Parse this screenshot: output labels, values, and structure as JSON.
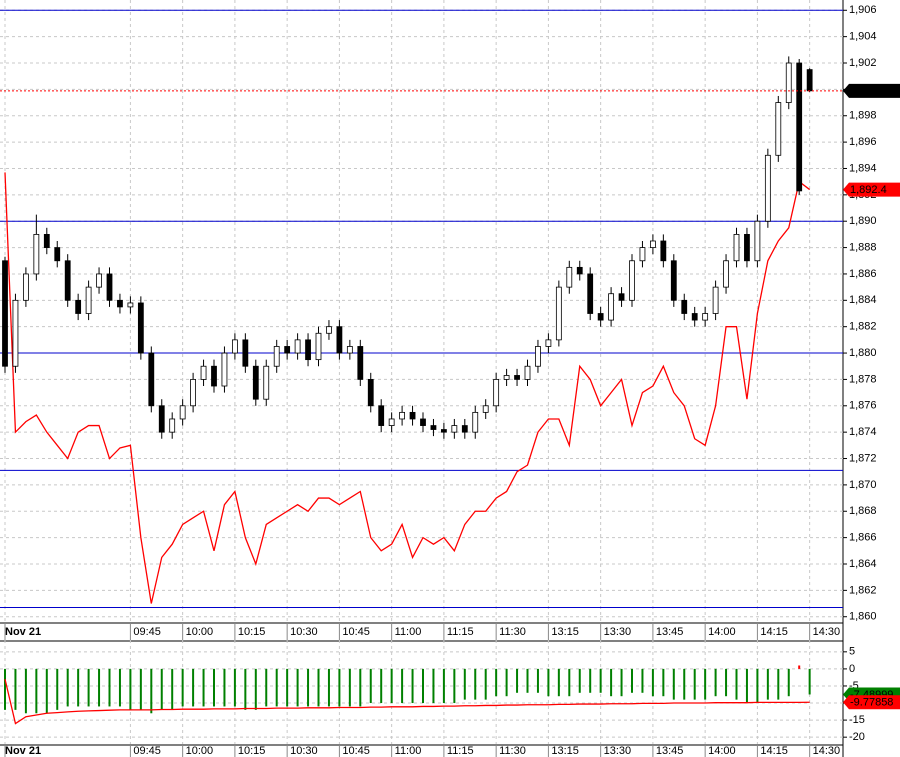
{
  "chart_data": [
    {
      "type": "candlestick",
      "categories": [
        "Nov 21",
        null,
        null,
        null,
        null,
        null,
        null,
        null,
        null,
        null,
        null,
        null,
        "09:45",
        null,
        null,
        null,
        null,
        "10:00",
        null,
        null,
        null,
        null,
        "10:15",
        null,
        null,
        null,
        null,
        "10:30",
        null,
        null,
        null,
        null,
        "10:45",
        null,
        null,
        null,
        null,
        "11:00",
        null,
        null,
        null,
        null,
        "11:15",
        null,
        null,
        null,
        null,
        "11:30",
        null,
        null,
        null,
        null,
        "13:15",
        null,
        null,
        null,
        null,
        "13:30",
        null,
        null,
        null,
        null,
        "13:45",
        null,
        null,
        null,
        null,
        "14:00",
        null,
        null,
        null,
        null,
        "14:15",
        null,
        null,
        null,
        null,
        "14:30"
      ],
      "open": [
        1887,
        1879,
        1884,
        1886,
        1889,
        1888,
        1887,
        1884,
        1883,
        1885,
        1886,
        1884,
        1883.5,
        1883.8,
        1880,
        1876,
        1874,
        1875,
        1876,
        1878,
        1879,
        1877.5,
        1880,
        1881,
        1879,
        1876.5,
        1879,
        1880.5,
        1880,
        1881,
        1879.5,
        1881.5,
        1882,
        1880,
        1880.5,
        1878,
        1876,
        1874.5,
        1875,
        1875.5,
        1875,
        1874.5,
        1874.2,
        1874,
        1874.5,
        1874,
        1875.5,
        1876,
        1878,
        1878.3,
        1878,
        1879,
        1880.5,
        1881,
        1885,
        1886.5,
        1886,
        1883,
        1882.5,
        1884.5,
        1884,
        1887,
        1888,
        1888.5,
        1887,
        1884,
        1883,
        1882.5,
        1883,
        1885,
        1887,
        1889,
        1887,
        1890,
        1895,
        1899,
        1902,
        1901.5
      ],
      "high": [
        1887.3,
        1884.5,
        1886.5,
        1890.5,
        1889.5,
        1888.5,
        1887.5,
        1884.5,
        1885.5,
        1886.5,
        1886.5,
        1884.5,
        1884.3,
        1884.3,
        1880.5,
        1876.5,
        1875.5,
        1876.5,
        1878.5,
        1879.5,
        1879.5,
        1880.5,
        1881.5,
        1881.5,
        1879.5,
        1879.5,
        1881,
        1881,
        1881.5,
        1881.5,
        1882,
        1882.5,
        1882.5,
        1881,
        1881,
        1878.5,
        1876.5,
        1875.5,
        1876,
        1876,
        1875.5,
        1875,
        1874.7,
        1875,
        1875,
        1876,
        1876.5,
        1878.5,
        1878.8,
        1878.8,
        1879.5,
        1881,
        1881.5,
        1885.5,
        1887,
        1887,
        1886.5,
        1883.5,
        1885,
        1885,
        1887.5,
        1888.5,
        1889,
        1889,
        1887.5,
        1884.5,
        1883.5,
        1883.5,
        1885.5,
        1887.5,
        1889.5,
        1889.5,
        1890.5,
        1895.5,
        1899.5,
        1902.5,
        1902.3,
        1901.6
      ],
      "low": [
        1878.5,
        1878.5,
        1883.5,
        1885.5,
        1887.5,
        1886.5,
        1883.5,
        1882.5,
        1882.5,
        1884.5,
        1883.5,
        1883,
        1883,
        1879.5,
        1875.5,
        1873.5,
        1873.5,
        1874.5,
        1875.5,
        1877.5,
        1877,
        1877,
        1879.5,
        1878.5,
        1876,
        1876,
        1878.5,
        1879.5,
        1879.5,
        1879,
        1879,
        1881,
        1879.5,
        1879.5,
        1877.5,
        1875.5,
        1874,
        1874,
        1874.5,
        1874.5,
        1874,
        1873.7,
        1873.5,
        1873.5,
        1873.5,
        1873.5,
        1875,
        1875.5,
        1877.5,
        1877.5,
        1877.5,
        1878.5,
        1880,
        1880.5,
        1884.5,
        1885.5,
        1882.5,
        1882,
        1882,
        1883.5,
        1883.5,
        1886.5,
        1887.5,
        1886.5,
        1883.5,
        1882.5,
        1882,
        1882,
        1882.5,
        1884.5,
        1886.5,
        1886.5,
        1886.5,
        1889.5,
        1894.5,
        1898.5,
        1892,
        1899.8
      ],
      "close": [
        1879,
        1884,
        1886,
        1889,
        1888,
        1887,
        1884,
        1883,
        1885,
        1886,
        1884,
        1883.5,
        1883.8,
        1880,
        1876,
        1874,
        1875,
        1876,
        1878,
        1879,
        1877.5,
        1880,
        1881,
        1879,
        1876.5,
        1879,
        1880.5,
        1880,
        1881,
        1879.5,
        1881.5,
        1882,
        1880,
        1880.5,
        1878,
        1876,
        1874.5,
        1875,
        1875.5,
        1875,
        1874.5,
        1874.2,
        1874,
        1874.5,
        1874,
        1875.5,
        1876,
        1878,
        1878.3,
        1878,
        1879,
        1880.5,
        1881,
        1885,
        1886.5,
        1886,
        1883,
        1882.5,
        1884.5,
        1884,
        1887,
        1888,
        1888.5,
        1887,
        1884,
        1883,
        1882.5,
        1883,
        1885,
        1887,
        1889,
        1887,
        1890,
        1895,
        1899,
        1902,
        1892.3,
        1899.89
      ],
      "up_color": "#ffffff",
      "down_color": "#000000",
      "line": {
        "color": "#ff0000",
        "values": [
          1893.7,
          1874,
          1874.8,
          1875.3,
          1874,
          1873,
          1872,
          1874,
          1874.5,
          1874.5,
          1872,
          1872.8,
          1873,
          1866,
          1861,
          1864.5,
          1865.5,
          1867,
          1867.5,
          1868,
          1865,
          1868.5,
          1869.5,
          1866,
          1864,
          1867,
          1867.5,
          1868,
          1868.5,
          1868,
          1869,
          1869,
          1868.5,
          1869,
          1869.5,
          1866,
          1865,
          1865.5,
          1867,
          1864.5,
          1866,
          1865.5,
          1866,
          1865,
          1867,
          1868,
          1868,
          1869,
          1869.5,
          1871,
          1871.5,
          1874,
          1875,
          1875,
          1873,
          1879,
          1878,
          1876,
          1877,
          1878,
          1874.5,
          1877,
          1877.5,
          1879,
          1877,
          1876,
          1873.5,
          1873,
          1876,
          1882,
          1882,
          1876.5,
          1883,
          1887,
          1888.5,
          1889.5,
          1893,
          1892.4
        ]
      },
      "levels": {
        "color": "#0000cc",
        "values": [
          1906,
          1890,
          1880,
          1871.1,
          1860.7
        ]
      },
      "tags": [
        {
          "value": 1899.89,
          "label": "1,899.89",
          "color": "#000000",
          "dotted_line": true
        },
        {
          "value": 1892.4,
          "label": "1,892.4",
          "color": "#ff0000",
          "dotted_line": false
        }
      ],
      "ylim": [
        1859.6,
        1906.4
      ],
      "yticks": [
        {
          "value": 1906,
          "label": "1,906"
        },
        {
          "value": 1904,
          "label": "1,904"
        },
        {
          "value": 1902,
          "label": "1,902"
        },
        {
          "value": 1900,
          "label": "1,900"
        },
        {
          "value": 1898,
          "label": "1,898"
        },
        {
          "value": 1896,
          "label": "1,896"
        },
        {
          "value": 1894,
          "label": "1,894"
        },
        {
          "value": 1892,
          "label": "1,892"
        },
        {
          "value": 1890,
          "label": "1,890"
        },
        {
          "value": 1888,
          "label": "1,888"
        },
        {
          "value": 1886,
          "label": "1,886"
        },
        {
          "value": 1884,
          "label": "1,884"
        },
        {
          "value": 1882,
          "label": "1,882"
        },
        {
          "value": 1880,
          "label": "1,880"
        },
        {
          "value": 1878,
          "label": "1,878"
        },
        {
          "value": 1876,
          "label": "1,876"
        },
        {
          "value": 1874,
          "label": "1,874"
        },
        {
          "value": 1872,
          "label": "1,872"
        },
        {
          "value": 1870,
          "label": "1,870"
        },
        {
          "value": 1868,
          "label": "1,868"
        },
        {
          "value": 1866,
          "label": "1,866"
        },
        {
          "value": 1864,
          "label": "1,864"
        },
        {
          "value": 1862,
          "label": "1,862"
        },
        {
          "value": 1860,
          "label": "1,860"
        }
      ],
      "grid": true
    },
    {
      "type": "histogram",
      "categories": [
        "Nov 21",
        null,
        null,
        null,
        null,
        null,
        null,
        null,
        null,
        null,
        null,
        null,
        "09:45",
        null,
        null,
        null,
        null,
        "10:00",
        null,
        null,
        null,
        null,
        "10:15",
        null,
        null,
        null,
        null,
        "10:30",
        null,
        null,
        null,
        null,
        "10:45",
        null,
        null,
        null,
        null,
        "11:00",
        null,
        null,
        null,
        null,
        "11:15",
        null,
        null,
        null,
        null,
        "11:30",
        null,
        null,
        null,
        null,
        "13:15",
        null,
        null,
        null,
        null,
        "13:30",
        null,
        null,
        null,
        null,
        "13:45",
        null,
        null,
        null,
        null,
        "14:00",
        null,
        null,
        null,
        null,
        "14:15",
        null,
        null,
        null,
        null,
        "14:30"
      ],
      "values": [
        -12,
        -12,
        -13,
        -13,
        -13,
        -12,
        -11,
        -11,
        -11,
        -11,
        -11,
        -11,
        -12,
        -12,
        -13,
        -12,
        -12,
        -11,
        -11,
        -11,
        -11,
        -11,
        -11,
        -12,
        -12,
        -11,
        -11,
        -11,
        -11,
        -11,
        -11,
        -11,
        -11,
        -11,
        -11,
        -10,
        -10,
        -10,
        -10,
        -10,
        -10,
        -10,
        -10,
        -10,
        -9,
        -9,
        -9,
        -8,
        -8,
        -7,
        -7,
        -7,
        -8,
        -8,
        -8,
        -7,
        -7,
        -7,
        -8,
        -8,
        -7,
        -7,
        -8,
        -8,
        -9,
        -9,
        -9,
        -9,
        -8,
        -8,
        -9,
        -10,
        -10,
        -9,
        -9,
        -8,
        1,
        -7.48999
      ],
      "color": "#008000",
      "positive_color": "#ff0000",
      "signal": {
        "color": "#ff0000",
        "values": [
          -3,
          -16,
          -14,
          -13.5,
          -13,
          -12.8,
          -12.6,
          -12.4,
          -12.3,
          -12.2,
          -12.1,
          -12,
          -12,
          -12,
          -12,
          -11.9,
          -11.9,
          -11.8,
          -11.8,
          -11.8,
          -11.7,
          -11.7,
          -11.7,
          -11.6,
          -11.6,
          -11.6,
          -11.5,
          -11.5,
          -11.5,
          -11.4,
          -11.4,
          -11.4,
          -11.3,
          -11.3,
          -11.3,
          -11.2,
          -11.2,
          -11.1,
          -11.1,
          -11.1,
          -11,
          -11,
          -10.9,
          -10.9,
          -10.8,
          -10.8,
          -10.7,
          -10.7,
          -10.6,
          -10.6,
          -10.5,
          -10.5,
          -10.5,
          -10.4,
          -10.4,
          -10.3,
          -10.3,
          -10.3,
          -10.2,
          -10.2,
          -10.2,
          -10.1,
          -10.1,
          -10.1,
          -10,
          -10,
          -10,
          -10,
          -9.9,
          -9.9,
          -9.9,
          -9.9,
          -9.8,
          -9.8,
          -9.8,
          -9.8,
          -9.8,
          -9.77858
        ]
      },
      "tags": [
        {
          "value": -7.48999,
          "label": "-7.48999",
          "color": "#008000",
          "dotted_line": false
        },
        {
          "value": -9.77858,
          "label": "-9.77858",
          "color": "#ff0000",
          "dotted_line": false
        }
      ],
      "ylim": [
        -22,
        7
      ],
      "yticks": [
        5,
        0,
        -5,
        -10,
        -15,
        -20
      ],
      "grid": true
    }
  ]
}
